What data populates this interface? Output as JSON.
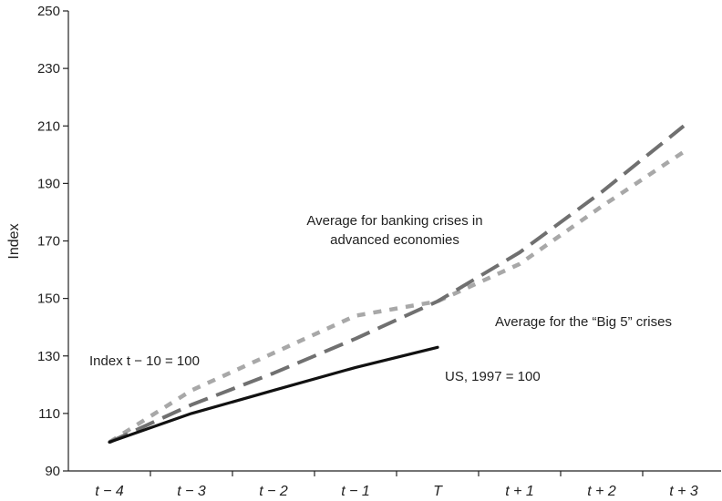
{
  "chart_data": {
    "type": "line",
    "title": "",
    "xlabel": "",
    "ylabel": "Index",
    "categories": [
      "t − 4",
      "t − 3",
      "t − 2",
      "t − 1",
      "T",
      "t + 1",
      "t + 2",
      "t + 3"
    ],
    "ylim": [
      90,
      250
    ],
    "yticks": [
      90,
      110,
      130,
      150,
      170,
      190,
      210,
      230,
      250
    ],
    "grid": false,
    "legend": "none",
    "series": [
      {
        "name": "Average for banking crises in advanced economies",
        "style": "long-dash",
        "color": "#707070",
        "values": [
          100,
          113,
          124,
          136,
          149,
          166,
          187,
          210
        ]
      },
      {
        "name": "Average for the “Big 5” crises",
        "style": "dotted",
        "color": "#a8a8a8",
        "values": [
          100,
          118,
          131,
          144,
          149,
          162,
          182,
          201
        ]
      },
      {
        "name": "US, 1997 = 100",
        "style": "solid",
        "color": "#111111",
        "values": [
          100,
          110,
          118,
          126,
          133,
          null,
          null,
          null
        ]
      }
    ],
    "annotations": [
      {
        "id": "advanced",
        "lines": [
          "Average for banking crises in",
          "advanced economies"
        ]
      },
      {
        "id": "big5",
        "lines": [
          "Average for the “Big 5” crises"
        ]
      },
      {
        "id": "index-note",
        "lines": [
          "Index t − 10 = 100"
        ]
      },
      {
        "id": "us",
        "lines": [
          "US, 1997 = 100"
        ]
      }
    ]
  }
}
